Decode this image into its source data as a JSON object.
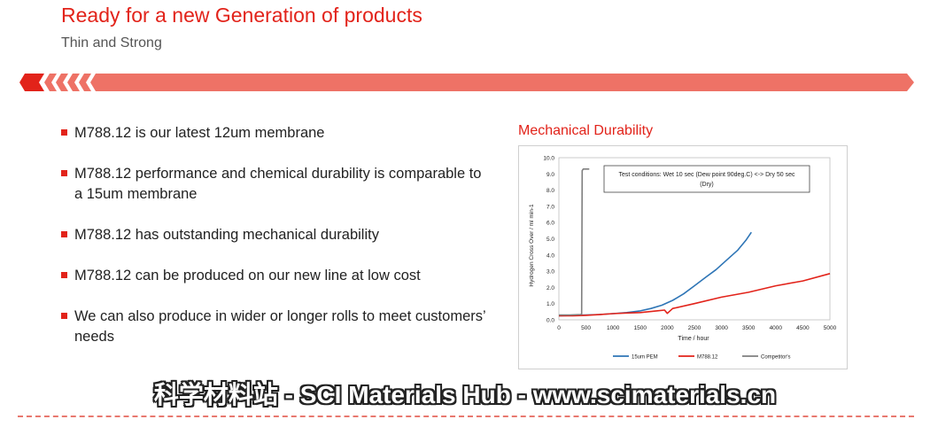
{
  "header": {
    "title": "Ready for a new Generation of products",
    "subtitle": "Thin and Strong"
  },
  "bullets": [
    "M788.12 is our latest 12um membrane",
    "M788.12 performance and chemical durability is comparable to a 15um membrane",
    "M788.12 has outstanding mechanical durability",
    "M788.12 can be produced on our new line at low cost",
    "We can also produce in wider or longer rolls to meet customers’ needs"
  ],
  "chart_heading": "Mechanical Durability",
  "watermark": "科学材料站 - SCI Materials Hub - www.scimaterials.cn",
  "colors": {
    "accent": "#e2231a",
    "banner": "#ee7266",
    "blue": "#2e75b6",
    "red": "#e2231a",
    "gray": "#7f7f7f"
  },
  "chart_data": {
    "type": "line",
    "xlabel": "Time / hour",
    "ylabel": "Hydrogen Cross Over / ml min-1",
    "xlim": [
      0,
      5000
    ],
    "ylim": [
      0,
      10
    ],
    "xticks": [
      "0",
      "500",
      "1000",
      "1500",
      "2000",
      "2500",
      "3000",
      "3500",
      "4000",
      "4500",
      "5000"
    ],
    "yticks": [
      "0.0",
      "1.0",
      "2.0",
      "3.0",
      "4.0",
      "5.0",
      "6.0",
      "7.0",
      "8.0",
      "9.0",
      "10.0"
    ],
    "annotation": "Test conditions:  Wet 10 sec (Dew point 90deg.C) <-> Dry 50 sec (Dry)",
    "legend_position": "bottom",
    "series": [
      {
        "name": "15um PEM",
        "color": "#2e75b6",
        "x": [
          0,
          250,
          500,
          750,
          1000,
          1250,
          1500,
          1700,
          1900,
          2100,
          2300,
          2500,
          2700,
          2900,
          3100,
          3300,
          3450,
          3550
        ],
        "y": [
          0.25,
          0.27,
          0.3,
          0.33,
          0.38,
          0.45,
          0.55,
          0.7,
          0.9,
          1.2,
          1.6,
          2.1,
          2.6,
          3.1,
          3.7,
          4.3,
          4.9,
          5.4
        ]
      },
      {
        "name": "M788.12",
        "color": "#e2231a",
        "x": [
          0,
          250,
          500,
          750,
          1000,
          1250,
          1500,
          1800,
          1950,
          2000,
          2100,
          2500,
          3000,
          3500,
          4000,
          4500,
          5000
        ],
        "y": [
          0.25,
          0.25,
          0.28,
          0.32,
          0.38,
          0.42,
          0.45,
          0.55,
          0.6,
          0.4,
          0.7,
          1.0,
          1.4,
          1.7,
          2.1,
          2.4,
          2.85
        ]
      },
      {
        "name": "Competitor's",
        "color": "#7f7f7f",
        "x": [
          0,
          200,
          400,
          420,
          430,
          450,
          560
        ],
        "y": [
          0.3,
          0.3,
          0.33,
          0.35,
          9.2,
          9.3,
          9.3
        ]
      }
    ]
  }
}
